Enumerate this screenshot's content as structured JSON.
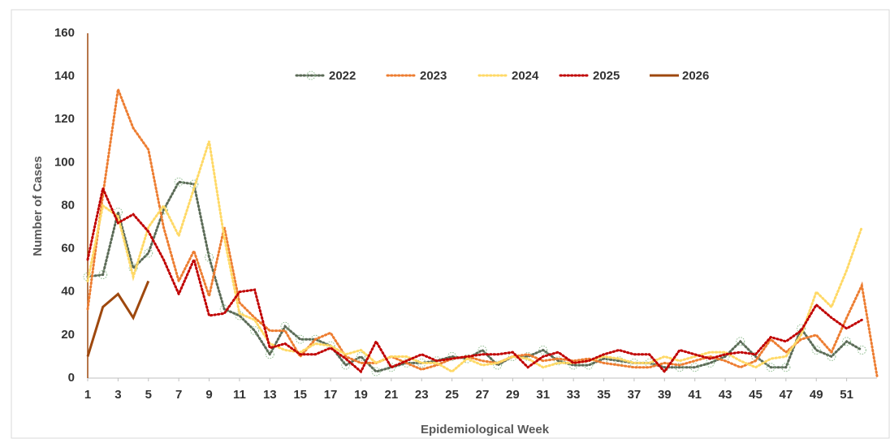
{
  "chart_data": {
    "type": "line",
    "y_label": "Number of Cases",
    "x_label": "Epidemiological Week",
    "x": [
      1,
      2,
      3,
      4,
      5,
      6,
      7,
      8,
      9,
      10,
      11,
      12,
      13,
      14,
      15,
      16,
      17,
      18,
      19,
      20,
      21,
      22,
      23,
      24,
      25,
      26,
      27,
      28,
      29,
      30,
      31,
      32,
      33,
      34,
      35,
      36,
      37,
      38,
      39,
      40,
      41,
      42,
      43,
      44,
      45,
      46,
      47,
      48,
      49,
      50,
      51,
      52,
      53
    ],
    "xlim": [
      1,
      53
    ],
    "xticks": [
      1,
      3,
      5,
      7,
      9,
      11,
      13,
      15,
      17,
      19,
      21,
      23,
      25,
      27,
      29,
      31,
      33,
      35,
      37,
      39,
      41,
      43,
      45,
      47,
      49,
      51
    ],
    "ylim": [
      0,
      160
    ],
    "yticks": [
      0,
      20,
      40,
      60,
      80,
      100,
      120,
      140,
      160
    ],
    "legend": "top",
    "series": [
      {
        "name": "2022",
        "color": "#5b6b57",
        "style": "dotted",
        "marker": "circle",
        "values": [
          47,
          48,
          77,
          51,
          58,
          78,
          91,
          90,
          56,
          32,
          29,
          22,
          11,
          24,
          18,
          18,
          15,
          6,
          10,
          3,
          5,
          7,
          7,
          8,
          10,
          9,
          13,
          6,
          10,
          10,
          13,
          8,
          6,
          6,
          9,
          8,
          7,
          7,
          5,
          5,
          5,
          7,
          10,
          17,
          10,
          5,
          5,
          23,
          13,
          10,
          17,
          13,
          null
        ]
      },
      {
        "name": "2023",
        "color": "#ed7d31",
        "style": "dotted",
        "values": [
          32,
          85,
          134,
          116,
          106,
          70,
          45,
          59,
          38,
          70,
          35,
          28,
          22,
          22,
          10,
          18,
          21,
          10,
          7,
          7,
          10,
          7,
          4,
          6,
          9,
          10,
          8,
          7,
          10,
          11,
          8,
          9,
          8,
          9,
          7,
          6,
          5,
          5,
          7,
          6,
          8,
          10,
          8,
          5,
          8,
          18,
          12,
          18,
          20,
          12,
          28,
          43,
          1
        ]
      },
      {
        "name": "2024",
        "color": "#ffd966",
        "style": "dotted",
        "values": [
          45,
          80,
          75,
          47,
          70,
          80,
          66,
          88,
          110,
          65,
          30,
          27,
          16,
          13,
          12,
          16,
          15,
          11,
          13,
          7,
          10,
          10,
          7,
          7,
          3,
          9,
          6,
          7,
          10,
          9,
          5,
          7,
          7,
          8,
          10,
          9,
          7,
          7,
          10,
          8,
          10,
          12,
          12,
          8,
          5,
          9,
          10,
          20,
          40,
          33,
          50,
          70,
          null
        ]
      },
      {
        "name": "2025",
        "color": "#c00000",
        "style": "dotted",
        "values": [
          55,
          88,
          72,
          76,
          68,
          55,
          39,
          55,
          29,
          30,
          40,
          41,
          14,
          16,
          11,
          11,
          14,
          9,
          3,
          17,
          5,
          8,
          11,
          8,
          9,
          10,
          11,
          11,
          12,
          5,
          10,
          12,
          7,
          8,
          11,
          13,
          11,
          11,
          3,
          13,
          11,
          9,
          11,
          12,
          11,
          19,
          17,
          22,
          34,
          28,
          23,
          27,
          null
        ]
      },
      {
        "name": "2026",
        "color": "#9e480e",
        "style": "solid",
        "values": [
          10,
          33,
          39,
          28,
          45,
          null,
          null,
          null,
          null,
          null,
          null,
          null,
          null,
          null,
          null,
          null,
          null,
          null,
          null,
          null,
          null,
          null,
          null,
          null,
          null,
          null,
          null,
          null,
          null,
          null,
          null,
          null,
          null,
          null,
          null,
          null,
          null,
          null,
          null,
          null,
          null,
          null,
          null,
          null,
          null,
          null,
          null,
          null,
          null,
          null,
          null,
          null,
          null
        ]
      }
    ]
  }
}
